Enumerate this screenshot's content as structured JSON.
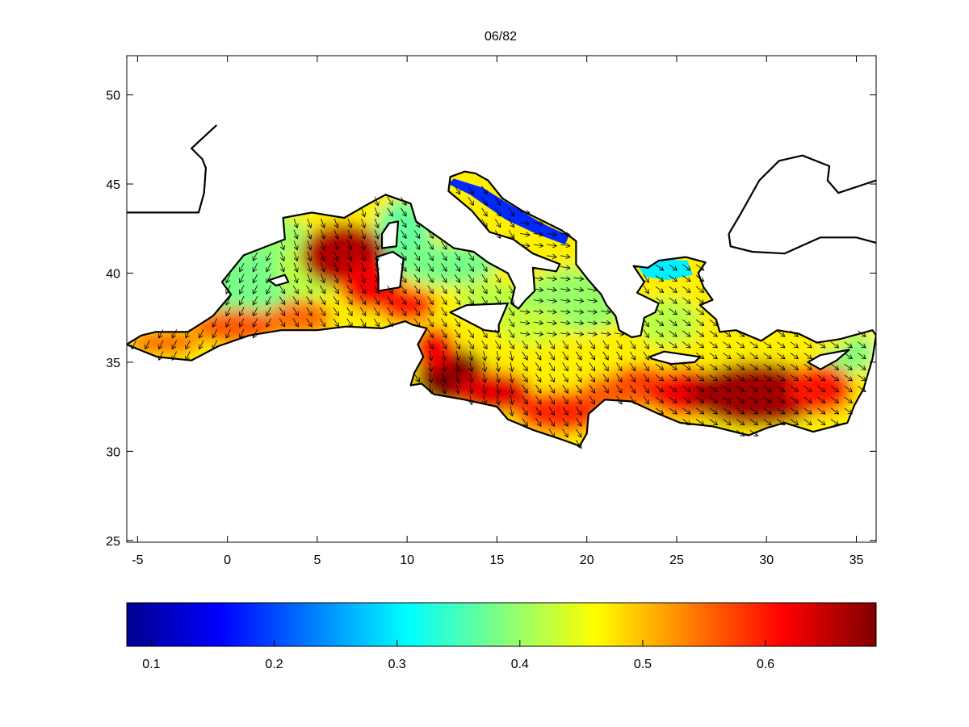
{
  "map": {
    "title": "06/82",
    "region": "Mediterranean Sea",
    "x_axis": {
      "ticks": [
        -5,
        0,
        5,
        10,
        15,
        20,
        25,
        30,
        35
      ],
      "range": [
        -5.6,
        36.1
      ]
    },
    "y_axis": {
      "ticks": [
        25,
        30,
        35,
        40,
        45,
        50
      ],
      "range": [
        24.9,
        52.2
      ]
    },
    "field": {
      "type": "colored field with arrow vectors",
      "high_cores": [
        {
          "lon": 12.5,
          "lat": 34.2,
          "value": 0.67
        },
        {
          "lon": 6.5,
          "lat": 41.0,
          "value": 0.64
        },
        {
          "lon": 29.5,
          "lat": 33.0,
          "value": 0.65
        },
        {
          "lon": 15.5,
          "lat": 33.3,
          "value": 0.6
        }
      ],
      "low_areas": [
        {
          "name": "Adriatic",
          "value": 0.18
        },
        {
          "name": "North Aegean",
          "value": 0.3
        }
      ]
    },
    "colorbar": {
      "colormap": "jet",
      "ticks": [
        0.1,
        0.2,
        0.3,
        0.4,
        0.5,
        0.6
      ],
      "tick_labels": [
        "0.1",
        "0.2",
        "0.3",
        "0.4",
        "0.5",
        "0.6"
      ],
      "range": [
        0.08,
        0.69
      ]
    }
  },
  "colors": {
    "low": "#00008f",
    "mid": "#80ff80",
    "high": "#800000",
    "coast": "#000000"
  }
}
